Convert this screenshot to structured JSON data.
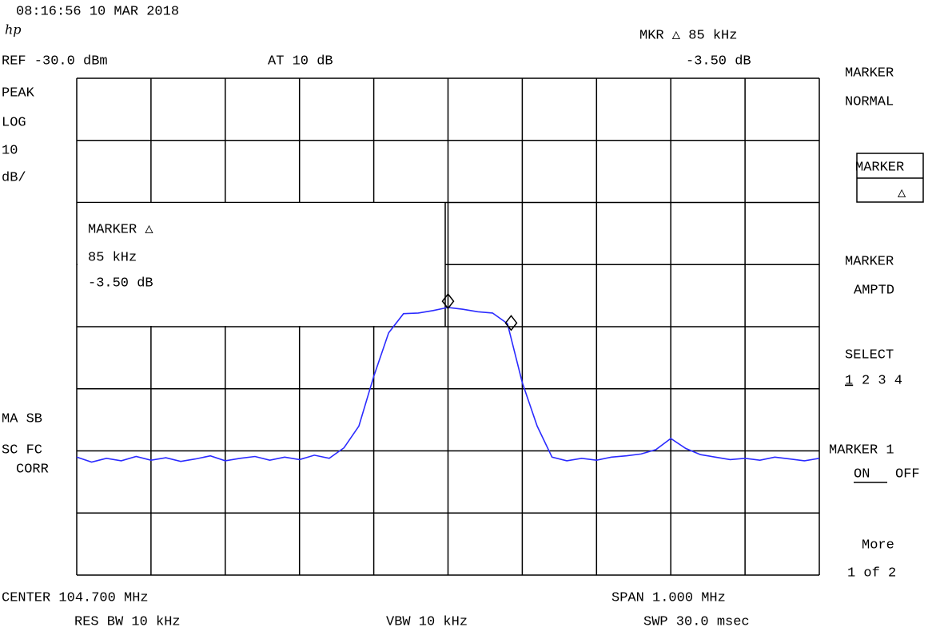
{
  "header": {
    "timestamp": "08:16:56  10 MAR 2018",
    "logo": "hp",
    "marker_readout": "MKR △ 85 kHz",
    "marker_delta": "-3.50 dB",
    "reference": "REF -30.0 dBm",
    "attenuation": "AT 10 dB"
  },
  "left_panel": {
    "detector": "PEAK",
    "scale": [
      "LOG",
      "10",
      "dB/"
    ],
    "status": [
      "MA SB",
      "SC FC",
      "CORR"
    ]
  },
  "marker_box": {
    "lines": [
      "MARKER △",
      "85 kHz",
      "-3.50 dB"
    ]
  },
  "softkeys": {
    "marker_normal": [
      "MARKER",
      "NORMAL"
    ],
    "marker_delta": [
      "MARKER",
      "△"
    ],
    "marker_amptd": [
      "MARKER",
      "AMPTD"
    ],
    "select": [
      "SELECT",
      "1",
      "2 3 4"
    ],
    "marker_1": [
      "MARKER 1",
      "ON",
      "OFF"
    ],
    "more": [
      "More",
      "1 of 2"
    ]
  },
  "footer": {
    "center": "CENTER 104.700 MHz",
    "span": "SPAN 1.000 MHz",
    "rbw": "RES BW 10 kHz",
    "vbw": "VBW 10 kHz",
    "sweep": "SWP 30.0 msec"
  },
  "chart_data": {
    "type": "line",
    "xlim": [
      104.2,
      105.2
    ],
    "ylim": [
      -110,
      -30
    ],
    "x": [
      104.2,
      104.22,
      104.24,
      104.26,
      104.28,
      104.3,
      104.32,
      104.34,
      104.36,
      104.38,
      104.4,
      104.42,
      104.44,
      104.46,
      104.48,
      104.5,
      104.52,
      104.54,
      104.56,
      104.58,
      104.6,
      104.62,
      104.64,
      104.66,
      104.68,
      104.7,
      104.72,
      104.74,
      104.76,
      104.78,
      104.8,
      104.82,
      104.84,
      104.86,
      104.88,
      104.9,
      104.92,
      104.94,
      104.96,
      104.98,
      105.0,
      105.02,
      105.04,
      105.06,
      105.08,
      105.1,
      105.12,
      105.14,
      105.16,
      105.18,
      105.2
    ],
    "series": [
      {
        "color": "#2b2bff",
        "values": [
          -91.0,
          -91.8,
          -91.2,
          -91.6,
          -90.9,
          -91.5,
          -91.1,
          -91.7,
          -91.3,
          -90.8,
          -91.6,
          -91.2,
          -90.9,
          -91.5,
          -91.0,
          -91.4,
          -90.7,
          -91.2,
          -89.5,
          -86.0,
          -78.0,
          -71.0,
          -67.9,
          -67.8,
          -67.4,
          -66.9,
          -67.2,
          -67.6,
          -67.8,
          -69.5,
          -79.0,
          -86.0,
          -91.0,
          -91.6,
          -91.2,
          -91.5,
          -91.0,
          -90.8,
          -90.5,
          -89.8,
          -88.0,
          -89.6,
          -90.6,
          -91.0,
          -91.4,
          -91.2,
          -91.5,
          -91.0,
          -91.3,
          -91.6,
          -91.2
        ]
      }
    ],
    "markers": [
      {
        "x": 104.7,
        "y": -65.9
      },
      {
        "x": 104.785,
        "y": -69.4
      }
    ]
  }
}
